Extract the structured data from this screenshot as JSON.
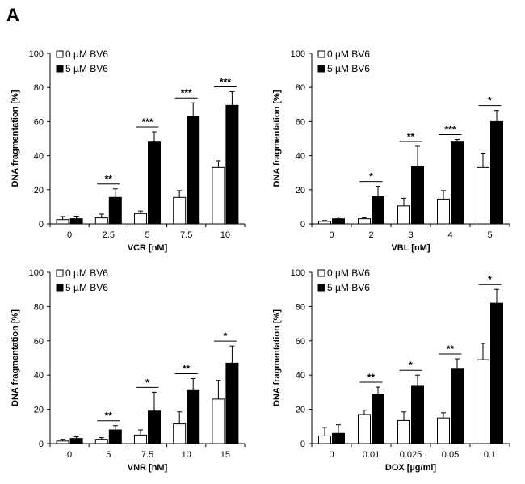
{
  "panel_label": "A",
  "colors": {
    "control": "#ffffff",
    "treated": "#000000",
    "axis": "#000000"
  },
  "chart_data": [
    {
      "type": "bar",
      "title": "",
      "xlabel": "VCR [nM]",
      "ylabel": "DNA fragmentation [%]",
      "ylim": [
        0,
        100
      ],
      "yticks": [
        0,
        20,
        40,
        60,
        80,
        100
      ],
      "categories": [
        "0",
        "2.5",
        "5",
        "7.5",
        "10"
      ],
      "legend": [
        "0 µM BV6",
        "5 µM BV6"
      ],
      "series": [
        {
          "name": "0 µM BV6",
          "values": [
            2.5,
            3.5,
            6,
            15.5,
            33
          ],
          "errors": [
            1.8,
            2.2,
            1.5,
            4,
            4
          ]
        },
        {
          "name": "5 µM BV6",
          "values": [
            3,
            15.5,
            48,
            63,
            69.5
          ],
          "errors": [
            1.5,
            5,
            6,
            8,
            8
          ]
        }
      ],
      "significance": [
        "",
        "**",
        "***",
        "***",
        "***"
      ]
    },
    {
      "type": "bar",
      "title": "",
      "xlabel": "VBL [nM]",
      "ylabel": "DNA fragmentation [%]",
      "ylim": [
        0,
        100
      ],
      "yticks": [
        0,
        20,
        40,
        60,
        80,
        100
      ],
      "categories": [
        "0",
        "2",
        "3",
        "4",
        "5"
      ],
      "legend": [
        "0 µM BV6",
        "5 µM BV6"
      ],
      "series": [
        {
          "name": "0 µM BV6",
          "values": [
            1.5,
            3,
            10.5,
            14.5,
            33
          ],
          "errors": [
            0.5,
            0.5,
            4.5,
            5,
            8.5
          ]
        },
        {
          "name": "5 µM BV6",
          "values": [
            3,
            16,
            33.5,
            48,
            60
          ],
          "errors": [
            1,
            6,
            12,
            1.5,
            6.5
          ]
        }
      ],
      "significance": [
        "",
        "*",
        "**",
        "***",
        "*"
      ]
    },
    {
      "type": "bar",
      "title": "",
      "xlabel": "VNR [nM]",
      "ylabel": "DNA fragmentation [%]",
      "ylim": [
        0,
        100
      ],
      "yticks": [
        0,
        20,
        40,
        60,
        80,
        100
      ],
      "categories": [
        "0",
        "5",
        "7.5",
        "10",
        "15"
      ],
      "legend": [
        "0 µM BV6",
        "5 µM BV6"
      ],
      "series": [
        {
          "name": "0 µM BV6",
          "values": [
            1.5,
            2.5,
            5,
            11.5,
            26
          ],
          "errors": [
            1,
            1,
            3,
            7,
            11
          ]
        },
        {
          "name": "5 µM BV6",
          "values": [
            3,
            8,
            19,
            31,
            47
          ],
          "errors": [
            1,
            2.5,
            11,
            7,
            10
          ]
        }
      ],
      "significance": [
        "",
        "**",
        "*",
        "**",
        "*"
      ]
    },
    {
      "type": "bar",
      "title": "",
      "xlabel": "DOX [µg/ml]",
      "ylabel": "DNA fragmentation [%]",
      "ylim": [
        0,
        100
      ],
      "yticks": [
        0,
        20,
        40,
        60,
        80,
        100
      ],
      "categories": [
        "0",
        "0.01",
        "0.025",
        "0.05",
        "0.1"
      ],
      "legend": [
        "0 µM BV6",
        "5 µM BV6"
      ],
      "series": [
        {
          "name": "0 µM BV6",
          "values": [
            4.5,
            17,
            13.5,
            15,
            49
          ],
          "errors": [
            5,
            2.5,
            5,
            3,
            9.5
          ]
        },
        {
          "name": "5 µM BV6",
          "values": [
            6,
            29,
            33.5,
            43.5,
            82
          ],
          "errors": [
            5,
            4,
            6.5,
            6,
            8
          ]
        }
      ],
      "significance": [
        "",
        "**",
        "*",
        "**",
        "*"
      ]
    }
  ]
}
